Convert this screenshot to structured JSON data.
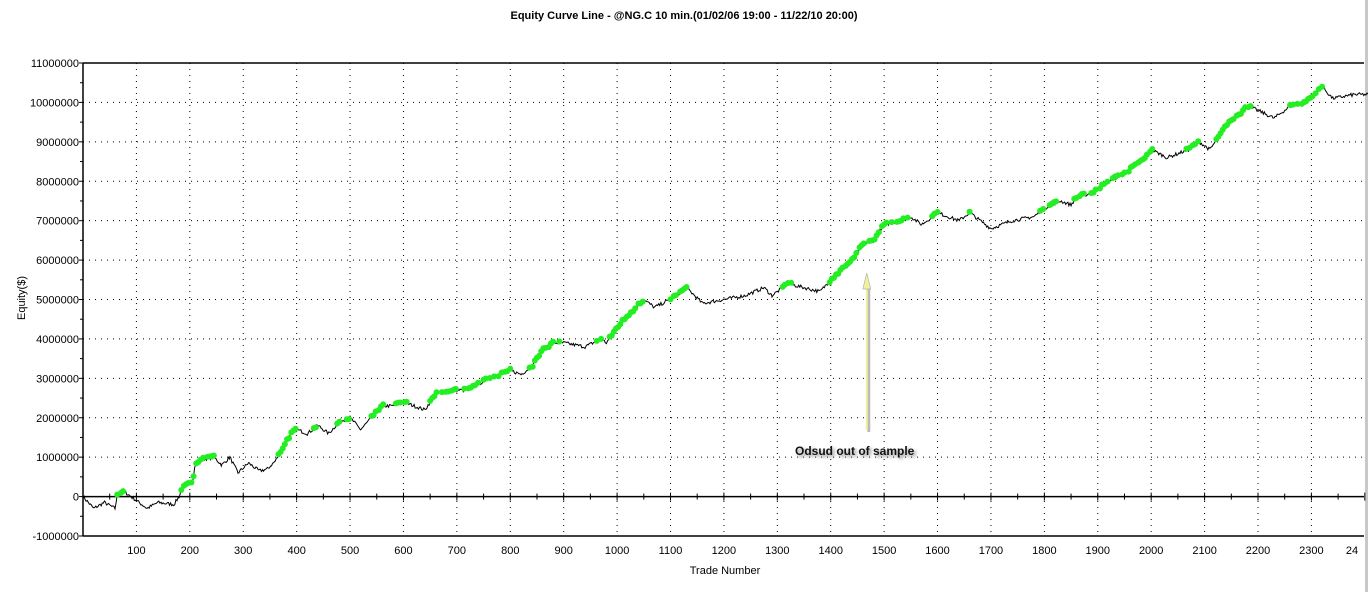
{
  "chart_data": {
    "type": "line",
    "title": "Equity Curve Line - @NG.C 10 min.(01/02/06 19:00 - 11/22/10 20:00)",
    "xlabel": "Trade Number",
    "ylabel": "Equity($)",
    "xlim": [
      0,
      2420
    ],
    "ylim": [
      -1000000,
      11000000
    ],
    "grid": true,
    "xticks": [
      "100",
      "200",
      "300",
      "400",
      "500",
      "600",
      "700",
      "800",
      "900",
      "1000",
      "1100",
      "1200",
      "1300",
      "1400",
      "1500",
      "1600",
      "1700",
      "1800",
      "1900",
      "2000",
      "2100",
      "2200",
      "2300",
      "24"
    ],
    "yticks": [
      "11000000",
      "10000000",
      "9000000",
      "8000000",
      "7000000",
      "6000000",
      "5000000",
      "4000000",
      "3000000",
      "2000000",
      "1000000",
      "0",
      "-1000000"
    ],
    "series": [
      {
        "name": "Equity",
        "color": "#000000",
        "marker_color": "#22ee22",
        "points": [
          [
            0,
            0
          ],
          [
            20,
            -300000
          ],
          [
            40,
            -150000
          ],
          [
            60,
            -300000
          ],
          [
            65,
            100000
          ],
          [
            80,
            100000
          ],
          [
            100,
            -100000
          ],
          [
            120,
            -300000
          ],
          [
            140,
            -150000
          ],
          [
            170,
            -200000
          ],
          [
            180,
            0
          ],
          [
            185,
            200000
          ],
          [
            195,
            300000
          ],
          [
            205,
            400000
          ],
          [
            210,
            800000
          ],
          [
            225,
            950000
          ],
          [
            245,
            1000000
          ],
          [
            260,
            800000
          ],
          [
            275,
            1000000
          ],
          [
            290,
            600000
          ],
          [
            310,
            850000
          ],
          [
            330,
            650000
          ],
          [
            345,
            700000
          ],
          [
            360,
            900000
          ],
          [
            380,
            1400000
          ],
          [
            390,
            1600000
          ],
          [
            400,
            1700000
          ],
          [
            420,
            1600000
          ],
          [
            440,
            1800000
          ],
          [
            460,
            1600000
          ],
          [
            480,
            1900000
          ],
          [
            500,
            2000000
          ],
          [
            520,
            1700000
          ],
          [
            540,
            2000000
          ],
          [
            560,
            2300000
          ],
          [
            580,
            2300000
          ],
          [
            600,
            2400000
          ],
          [
            620,
            2300000
          ],
          [
            640,
            2200000
          ],
          [
            660,
            2600000
          ],
          [
            700,
            2700000
          ],
          [
            720,
            2700000
          ],
          [
            760,
            3000000
          ],
          [
            780,
            3100000
          ],
          [
            800,
            3200000
          ],
          [
            820,
            3100000
          ],
          [
            840,
            3300000
          ],
          [
            860,
            3700000
          ],
          [
            880,
            3900000
          ],
          [
            900,
            3900000
          ],
          [
            940,
            3800000
          ],
          [
            970,
            4000000
          ],
          [
            980,
            3900000
          ],
          [
            1000,
            4300000
          ],
          [
            1020,
            4600000
          ],
          [
            1050,
            5000000
          ],
          [
            1070,
            4800000
          ],
          [
            1100,
            5000000
          ],
          [
            1130,
            5300000
          ],
          [
            1160,
            4900000
          ],
          [
            1200,
            5000000
          ],
          [
            1240,
            5100000
          ],
          [
            1275,
            5300000
          ],
          [
            1290,
            5100000
          ],
          [
            1320,
            5400000
          ],
          [
            1350,
            5300000
          ],
          [
            1380,
            5200000
          ],
          [
            1400,
            5500000
          ],
          [
            1440,
            6000000
          ],
          [
            1460,
            6400000
          ],
          [
            1480,
            6500000
          ],
          [
            1500,
            6900000
          ],
          [
            1530,
            7000000
          ],
          [
            1550,
            7100000
          ],
          [
            1570,
            6900000
          ],
          [
            1600,
            7200000
          ],
          [
            1640,
            7000000
          ],
          [
            1660,
            7200000
          ],
          [
            1700,
            6800000
          ],
          [
            1740,
            7000000
          ],
          [
            1780,
            7100000
          ],
          [
            1810,
            7400000
          ],
          [
            1830,
            7500000
          ],
          [
            1850,
            7400000
          ],
          [
            1860,
            7600000
          ],
          [
            1890,
            7700000
          ],
          [
            1920,
            8000000
          ],
          [
            1950,
            8200000
          ],
          [
            1990,
            8600000
          ],
          [
            2000,
            8800000
          ],
          [
            2030,
            8600000
          ],
          [
            2070,
            8800000
          ],
          [
            2090,
            9000000
          ],
          [
            2110,
            8800000
          ],
          [
            2140,
            9400000
          ],
          [
            2180,
            9900000
          ],
          [
            2200,
            9800000
          ],
          [
            2230,
            9600000
          ],
          [
            2260,
            9900000
          ],
          [
            2290,
            10000000
          ],
          [
            2320,
            10400000
          ],
          [
            2340,
            10100000
          ],
          [
            2380,
            10200000
          ],
          [
            2420,
            10200000
          ]
        ]
      }
    ],
    "annotations": [
      {
        "text": "Odsud out of sample",
        "x": 1460,
        "arrow_color": "#f0f0a0"
      }
    ]
  }
}
